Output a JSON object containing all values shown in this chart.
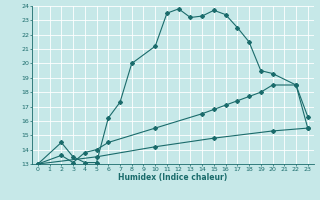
{
  "xlabel": "Humidex (Indice chaleur)",
  "xlim": [
    -0.5,
    23.5
  ],
  "ylim": [
    13,
    24
  ],
  "yticks": [
    13,
    14,
    15,
    16,
    17,
    18,
    19,
    20,
    21,
    22,
    23,
    24
  ],
  "xticks": [
    0,
    1,
    2,
    3,
    4,
    5,
    6,
    7,
    8,
    9,
    10,
    11,
    12,
    13,
    14,
    15,
    16,
    17,
    18,
    19,
    20,
    21,
    22,
    23
  ],
  "bg_color": "#c6e8e8",
  "line_color": "#1a6b6b",
  "grid_color": "#ffffff",
  "curve1_x": [
    0,
    2,
    3,
    4,
    5,
    6,
    7,
    8,
    10,
    11,
    12,
    13,
    14,
    15,
    16,
    17,
    18,
    19,
    20,
    22,
    23
  ],
  "curve1_y": [
    13,
    14.5,
    13.5,
    13.1,
    13.1,
    16.2,
    17.3,
    20.0,
    21.2,
    23.5,
    23.8,
    23.2,
    23.3,
    23.7,
    23.4,
    22.5,
    21.5,
    19.5,
    19.3,
    18.5,
    16.3
  ],
  "curve2_x": [
    0,
    2,
    3,
    4,
    5,
    6,
    10,
    14,
    15,
    16,
    17,
    18,
    19,
    20,
    22,
    23
  ],
  "curve2_y": [
    13,
    13.6,
    13.1,
    13.8,
    14.0,
    14.5,
    15.5,
    16.5,
    16.8,
    17.1,
    17.4,
    17.7,
    18.0,
    18.5,
    18.5,
    15.5
  ],
  "curve3_x": [
    0,
    5,
    10,
    15,
    20,
    23
  ],
  "curve3_y": [
    13,
    13.5,
    14.2,
    14.8,
    15.3,
    15.5
  ]
}
